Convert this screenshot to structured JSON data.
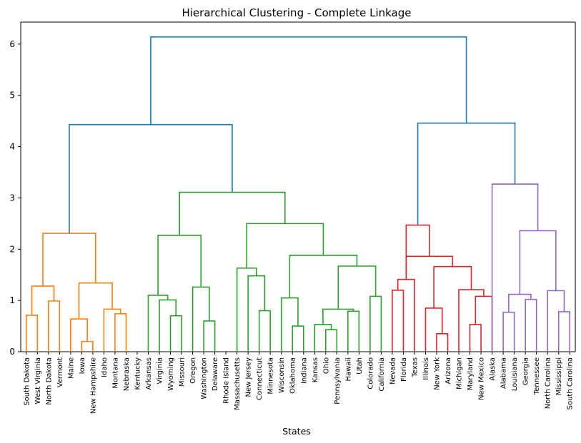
{
  "chart_data": {
    "type": "dendrogram",
    "title": "Hierarchical Clustering - Complete Linkage",
    "xlabel": "States",
    "ylabel": "",
    "ylim": [
      0,
      6.43
    ],
    "y_ticks": [
      0,
      1,
      2,
      3,
      4,
      5,
      6
    ],
    "grid": false,
    "leaves": [
      "South Dakota",
      "West Virginia",
      "North Dakota",
      "Vermont",
      "Maine",
      "Iowa",
      "New Hampshire",
      "Idaho",
      "Montana",
      "Nebraska",
      "Kentucky",
      "Arkansas",
      "Virginia",
      "Wyoming",
      "Missouri",
      "Oregon",
      "Washington",
      "Delaware",
      "Rhode Island",
      "Massachusetts",
      "New Jersey",
      "Connecticut",
      "Minnesota",
      "Wisconsin",
      "Oklahoma",
      "Indiana",
      "Kansas",
      "Ohio",
      "Pennsylvania",
      "Hawaii",
      "Utah",
      "Colorado",
      "California",
      "Nevada",
      "Florida",
      "Texas",
      "Illinois",
      "New York",
      "Arizona",
      "Michigan",
      "Maryland",
      "New Mexico",
      "Alaska",
      "Alabama",
      "Louisiana",
      "Georgia",
      "Tennessee",
      "North Carolina",
      "Mississippi",
      "South Carolina"
    ],
    "colors": {
      "orange": "#ff7f0e",
      "green": "#2ca02c",
      "red": "#d62728",
      "purple": "#9467bd",
      "blue": "#1f77b4"
    },
    "merges": [
      {
        "id": "A1",
        "a": "South Dakota",
        "b": "West Virginia",
        "height": 0.71,
        "color": "orange"
      },
      {
        "id": "A2",
        "a": "North Dakota",
        "b": "Vermont",
        "height": 0.99,
        "color": "orange"
      },
      {
        "id": "A3",
        "a": "A1",
        "b": "A2",
        "height": 1.28,
        "color": "orange"
      },
      {
        "id": "A4",
        "a": "Iowa",
        "b": "New Hampshire",
        "height": 0.2,
        "color": "orange"
      },
      {
        "id": "A5",
        "a": "Maine",
        "b": "A4",
        "height": 0.64,
        "color": "orange"
      },
      {
        "id": "A6",
        "a": "Montana",
        "b": "Nebraska",
        "height": 0.74,
        "color": "orange"
      },
      {
        "id": "A7",
        "a": "Idaho",
        "b": "A6",
        "height": 0.83,
        "color": "orange"
      },
      {
        "id": "A8",
        "a": "A5",
        "b": "A7",
        "height": 1.34,
        "color": "orange"
      },
      {
        "id": "A9",
        "a": "A3",
        "b": "A8",
        "height": 2.31,
        "color": "orange"
      },
      {
        "id": "G1",
        "a": "Wyoming",
        "b": "Missouri",
        "height": 0.7,
        "color": "green"
      },
      {
        "id": "G2",
        "a": "Virginia",
        "b": "G1",
        "height": 1.01,
        "color": "green"
      },
      {
        "id": "G3",
        "a": "Arkansas",
        "b": "G2",
        "height": 1.1,
        "color": "green"
      },
      {
        "id": "G4",
        "a": "Washington",
        "b": "Delaware",
        "height": 0.6,
        "color": "green"
      },
      {
        "id": "G5",
        "a": "Oregon",
        "b": "G4",
        "height": 1.26,
        "color": "green"
      },
      {
        "id": "G6",
        "a": "G3",
        "b": "G5",
        "height": 2.27,
        "color": "green"
      },
      {
        "id": "G7",
        "a": "Connecticut",
        "b": "Minnesota",
        "height": 0.8,
        "color": "green"
      },
      {
        "id": "G8",
        "a": "New Jersey",
        "b": "G7",
        "height": 1.48,
        "color": "green"
      },
      {
        "id": "G9",
        "a": "Massachusetts",
        "b": "G8",
        "height": 1.63,
        "color": "green"
      },
      {
        "id": "G10",
        "a": "Oklahoma",
        "b": "Indiana",
        "height": 0.5,
        "color": "green"
      },
      {
        "id": "G11",
        "a": "Wisconsin",
        "b": "G10",
        "height": 1.05,
        "color": "green"
      },
      {
        "id": "G12",
        "a": "Ohio",
        "b": "Pennsylvania",
        "height": 0.43,
        "color": "green"
      },
      {
        "id": "G13",
        "a": "Kansas",
        "b": "G12",
        "height": 0.53,
        "color": "green"
      },
      {
        "id": "G14",
        "a": "Hawaii",
        "b": "Utah",
        "height": 0.79,
        "color": "green"
      },
      {
        "id": "G15",
        "a": "G13",
        "b": "G14",
        "height": 0.83,
        "color": "green"
      },
      {
        "id": "G16",
        "a": "Colorado",
        "b": "California",
        "height": 1.08,
        "color": "green"
      },
      {
        "id": "G17",
        "a": "G15",
        "b": "G16",
        "height": 1.67,
        "color": "green"
      },
      {
        "id": "G18",
        "a": "G11",
        "b": "G17",
        "height": 1.88,
        "color": "green"
      },
      {
        "id": "G19",
        "a": "G9",
        "b": "G18",
        "height": 2.5,
        "color": "green"
      },
      {
        "id": "G20",
        "a": "G6",
        "b": "G19",
        "height": 3.11,
        "color": "green"
      },
      {
        "id": "R1",
        "a": "Nevada",
        "b": "Florida",
        "height": 1.2,
        "color": "red"
      },
      {
        "id": "R2",
        "a": "R1",
        "b": "Texas",
        "height": 1.41,
        "color": "red"
      },
      {
        "id": "R3",
        "a": "New York",
        "b": "Arizona",
        "height": 0.35,
        "color": "red"
      },
      {
        "id": "R4",
        "a": "Illinois",
        "b": "R3",
        "height": 0.85,
        "color": "red"
      },
      {
        "id": "R5",
        "a": "Maryland",
        "b": "New Mexico",
        "height": 0.53,
        "color": "red"
      },
      {
        "id": "R6",
        "a": "R5",
        "b": "Alaska",
        "height": 1.08,
        "color": "red"
      },
      {
        "id": "R7",
        "a": "Michigan",
        "b": "R6",
        "height": 1.21,
        "color": "red"
      },
      {
        "id": "R8",
        "a": "R4",
        "b": "R7",
        "height": 1.66,
        "color": "red"
      },
      {
        "id": "R9",
        "a": "R2",
        "b": "R8",
        "height": 1.86,
        "color": "red"
      },
      {
        "id": "R10",
        "a": "R2",
        "b": "R9",
        "height": 2.47,
        "color": "red"
      },
      {
        "id": "P1",
        "a": "Alabama",
        "b": "Louisiana",
        "height": 0.77,
        "color": "purple"
      },
      {
        "id": "P2",
        "a": "Georgia",
        "b": "Tennessee",
        "height": 1.02,
        "color": "purple"
      },
      {
        "id": "P3",
        "a": "P1",
        "b": "P2",
        "height": 1.12,
        "color": "purple"
      },
      {
        "id": "P4",
        "a": "Mississippi",
        "b": "South Carolina",
        "height": 0.78,
        "color": "purple"
      },
      {
        "id": "P5",
        "a": "North Carolina",
        "b": "P4",
        "height": 1.19,
        "color": "purple"
      },
      {
        "id": "P6",
        "a": "P3",
        "b": "P5",
        "height": 2.36,
        "color": "purple"
      },
      {
        "id": "P7",
        "a": "Alaska",
        "b": "P6",
        "height": 3.27,
        "color": "purple"
      },
      {
        "id": "B1",
        "a": "A9",
        "b": "G20",
        "height": 4.43,
        "color": "blue"
      },
      {
        "id": "B2",
        "a": "R10",
        "b": "P7",
        "height": 4.46,
        "color": "blue"
      },
      {
        "id": "B3",
        "a": "B1",
        "b": "B2",
        "height": 6.14,
        "color": "blue"
      }
    ]
  }
}
